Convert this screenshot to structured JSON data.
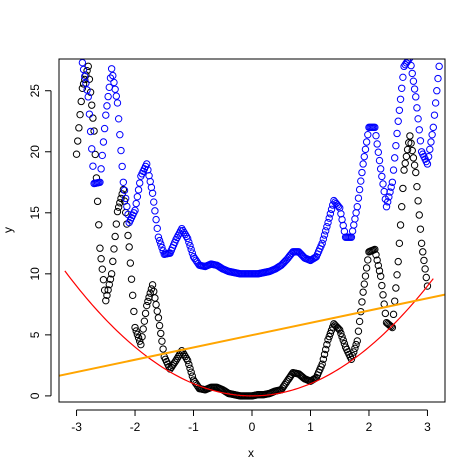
{
  "chart_data": {
    "type": "scatter",
    "xlabel": "x",
    "ylabel": "y",
    "xlim": [
      -3.3,
      3.3
    ],
    "ylim": [
      -0.5,
      27.6
    ],
    "xticks": [
      "-3",
      "-2",
      "-1",
      "0",
      "1",
      "2",
      "3"
    ],
    "yticks": [
      "0",
      "5",
      "10",
      "15",
      "20",
      "25"
    ],
    "grid": false,
    "legend": "none",
    "colors": {
      "series_black": "#000000",
      "series_blue": "#0000ff",
      "parabola": "#ff0000",
      "trend_line": "#ffa500",
      "frame": "#000000"
    },
    "series": [
      {
        "points": [
          [
            -3.0,
            19.8
          ],
          [
            -2.9,
            25.2
          ],
          [
            -2.8,
            27.0
          ],
          [
            -2.7,
            21.7
          ],
          [
            -2.6,
            12.1
          ],
          [
            -2.5,
            7.8
          ],
          [
            -2.4,
            10.0
          ],
          [
            -2.3,
            15.1
          ],
          [
            -2.2,
            16.9
          ],
          [
            -2.1,
            12.2
          ],
          [
            -2.0,
            5.6
          ],
          [
            -1.9,
            4.2
          ],
          [
            -1.8,
            7.4
          ],
          [
            -1.7,
            9.1
          ],
          [
            -1.6,
            6.4
          ],
          [
            -1.5,
            3.2
          ],
          [
            -1.4,
            2.2
          ],
          [
            -1.3,
            2.9
          ],
          [
            -1.2,
            3.7
          ],
          [
            -1.1,
            2.9
          ],
          [
            -1.0,
            1.3
          ],
          [
            -0.9,
            0.6
          ],
          [
            -0.8,
            0.5
          ],
          [
            -0.7,
            0.7
          ],
          [
            -0.6,
            0.7
          ],
          [
            -0.5,
            0.5
          ],
          [
            -0.4,
            0.2
          ],
          [
            -0.3,
            0.1
          ],
          [
            -0.2,
            0.0
          ],
          [
            -0.1,
            0.0
          ],
          [
            0.0,
            0.0
          ],
          [
            0.1,
            0.1
          ],
          [
            0.2,
            0.1
          ],
          [
            0.3,
            0.2
          ],
          [
            0.4,
            0.4
          ],
          [
            0.5,
            0.5
          ],
          [
            0.6,
            1.2
          ],
          [
            0.7,
            1.9
          ],
          [
            0.8,
            1.8
          ],
          [
            0.9,
            1.4
          ],
          [
            1.0,
            1.2
          ],
          [
            1.1,
            1.5
          ],
          [
            1.2,
            2.6
          ],
          [
            1.3,
            4.6
          ],
          [
            1.4,
            5.9
          ],
          [
            1.5,
            5.4
          ],
          [
            1.6,
            4.0
          ],
          [
            1.7,
            3.0
          ],
          [
            1.8,
            4.5
          ],
          [
            1.9,
            8.5
          ],
          [
            2.0,
            11.8
          ],
          [
            2.1,
            12.0
          ],
          [
            2.2,
            9.8
          ],
          [
            2.3,
            6.0
          ],
          [
            2.4,
            5.6
          ],
          [
            2.5,
            11.0
          ],
          [
            2.6,
            18.5
          ],
          [
            2.7,
            21.3
          ],
          [
            2.8,
            18.3
          ],
          [
            2.9,
            12.5
          ],
          [
            3.0,
            9.0
          ]
        ]
      },
      {
        "points": [
          [
            -2.9,
            27.3
          ],
          [
            -2.8,
            24.5
          ],
          [
            -2.7,
            17.4
          ],
          [
            -2.6,
            17.5
          ],
          [
            -2.5,
            23.0
          ],
          [
            -2.4,
            26.8
          ],
          [
            -2.3,
            24.0
          ],
          [
            -2.2,
            17.5
          ],
          [
            -2.1,
            14.2
          ],
          [
            -2.0,
            15.2
          ],
          [
            -1.9,
            18.0
          ],
          [
            -1.8,
            19.0
          ],
          [
            -1.7,
            16.6
          ],
          [
            -1.6,
            13.0
          ],
          [
            -1.5,
            11.6
          ],
          [
            -1.4,
            11.7
          ],
          [
            -1.3,
            12.8
          ],
          [
            -1.2,
            13.7
          ],
          [
            -1.1,
            12.9
          ],
          [
            -1.0,
            11.4
          ],
          [
            -0.9,
            10.7
          ],
          [
            -0.8,
            10.6
          ],
          [
            -0.7,
            10.8
          ],
          [
            -0.6,
            10.7
          ],
          [
            -0.5,
            10.4
          ],
          [
            -0.4,
            10.2
          ],
          [
            -0.3,
            10.1
          ],
          [
            -0.2,
            10.0
          ],
          [
            -0.1,
            10.0
          ],
          [
            0.0,
            10.0
          ],
          [
            0.1,
            10.0
          ],
          [
            0.2,
            10.1
          ],
          [
            0.3,
            10.2
          ],
          [
            0.4,
            10.4
          ],
          [
            0.5,
            10.7
          ],
          [
            0.6,
            11.2
          ],
          [
            0.7,
            11.8
          ],
          [
            0.8,
            11.8
          ],
          [
            0.9,
            11.3
          ],
          [
            1.0,
            11.1
          ],
          [
            1.1,
            11.4
          ],
          [
            1.2,
            12.5
          ],
          [
            1.3,
            14.2
          ],
          [
            1.4,
            16.0
          ],
          [
            1.5,
            15.4
          ],
          [
            1.6,
            13.0
          ],
          [
            1.7,
            13.0
          ],
          [
            1.8,
            15.5
          ],
          [
            1.9,
            19.0
          ],
          [
            2.0,
            22.0
          ],
          [
            2.1,
            22.0
          ],
          [
            2.2,
            18.6
          ],
          [
            2.3,
            15.5
          ],
          [
            2.4,
            17.5
          ],
          [
            2.5,
            22.5
          ],
          [
            2.6,
            27.0
          ],
          [
            2.7,
            27.7
          ],
          [
            2.8,
            24.5
          ],
          [
            2.9,
            20.0
          ],
          [
            3.0,
            19.0
          ],
          [
            3.1,
            22.0
          ],
          [
            3.2,
            27.0
          ]
        ]
      }
    ],
    "lines": [
      {
        "kind": "parabola",
        "formula": "y = x^2",
        "x_range": [
          -3.2,
          3.1
        ]
      },
      {
        "kind": "straight",
        "from": [
          -3.35,
          1.6
        ],
        "to": [
          3.3,
          8.3
        ]
      }
    ]
  }
}
